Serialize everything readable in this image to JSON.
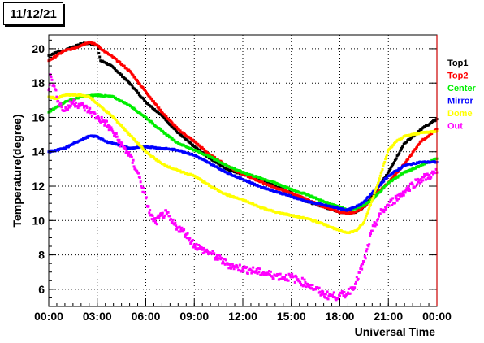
{
  "header": {
    "date": "11/12/21"
  },
  "chart_data": {
    "type": "scatter",
    "title": "",
    "xlabel": "Universal Time",
    "ylabel": "Temperature(degree)",
    "xlim": [
      0,
      24
    ],
    "ylim": [
      5,
      20.8
    ],
    "grid": true,
    "legend_position": "right",
    "x_ticks": [
      {
        "value": 0,
        "label": "00:00"
      },
      {
        "value": 3,
        "label": "03:00"
      },
      {
        "value": 6,
        "label": "06:00"
      },
      {
        "value": 9,
        "label": "09:00"
      },
      {
        "value": 12,
        "label": "12:00"
      },
      {
        "value": 15,
        "label": "15:00"
      },
      {
        "value": 18,
        "label": "18:00"
      },
      {
        "value": 21,
        "label": "21:00"
      },
      {
        "value": 24,
        "label": "00:00"
      }
    ],
    "y_ticks": [
      {
        "value": 6,
        "label": "6"
      },
      {
        "value": 8,
        "label": "8"
      },
      {
        "value": 10,
        "label": "10"
      },
      {
        "value": 12,
        "label": "12"
      },
      {
        "value": 14,
        "label": "14"
      },
      {
        "value": 16,
        "label": "16"
      },
      {
        "value": 18,
        "label": "18"
      },
      {
        "value": 20,
        "label": "20"
      }
    ],
    "series": [
      {
        "name": "Top1",
        "color": "#000000",
        "x": [
          0,
          0.5,
          1,
          1.5,
          2,
          2.5,
          3,
          3.2,
          3.5,
          4,
          5,
          6,
          7,
          8,
          9,
          10,
          11,
          12,
          13,
          14,
          15,
          16,
          17,
          18,
          18.5,
          19,
          19.5,
          20,
          21,
          22,
          23,
          24
        ],
        "y": [
          19.6,
          19.8,
          19.9,
          20.1,
          20.3,
          20.3,
          20.2,
          19.3,
          19.2,
          18.9,
          18.0,
          16.9,
          16.1,
          15.1,
          14.3,
          13.6,
          13.0,
          12.7,
          12.4,
          12.0,
          11.6,
          11.1,
          10.8,
          10.5,
          10.4,
          10.5,
          10.8,
          11.4,
          12.8,
          14.5,
          15.3,
          15.9
        ]
      },
      {
        "name": "Top2",
        "color": "#ff0000",
        "x": [
          0,
          0.5,
          1,
          1.5,
          2,
          2.5,
          3,
          3.5,
          4,
          5,
          6,
          7,
          8,
          9,
          10,
          11,
          12,
          13,
          14,
          15,
          16,
          17,
          18,
          18.5,
          19,
          19.5,
          20,
          21,
          22,
          23,
          24
        ],
        "y": [
          19.3,
          19.6,
          19.9,
          20.0,
          20.2,
          20.4,
          20.2,
          19.8,
          19.5,
          18.7,
          17.5,
          16.3,
          15.3,
          14.6,
          13.8,
          13.2,
          12.7,
          12.3,
          11.9,
          11.6,
          11.2,
          10.8,
          10.5,
          10.4,
          10.5,
          10.8,
          11.3,
          12.2,
          13.3,
          14.6,
          15.3
        ]
      },
      {
        "name": "Center",
        "color": "#00ee00",
        "x": [
          0,
          1,
          2,
          3,
          4,
          5,
          6,
          7,
          8,
          9,
          10,
          11,
          12,
          13,
          14,
          15,
          16,
          17,
          18,
          18.5,
          19,
          19.5,
          20,
          21,
          22,
          23,
          24
        ],
        "y": [
          16.3,
          16.9,
          17.2,
          17.3,
          17.2,
          16.7,
          16.0,
          15.2,
          14.5,
          14.1,
          13.7,
          13.2,
          12.8,
          12.5,
          12.2,
          11.8,
          11.5,
          11.1,
          10.8,
          10.6,
          10.7,
          10.9,
          11.2,
          12.2,
          12.8,
          13.2,
          13.6
        ]
      },
      {
        "name": "Mirror",
        "color": "#0000ff",
        "x": [
          0,
          1,
          2,
          2.5,
          3,
          3.5,
          4,
          5,
          6,
          7,
          8,
          9,
          10,
          11,
          12,
          13,
          14,
          15,
          16,
          17,
          18,
          18.5,
          19,
          19.5,
          20,
          21,
          22,
          23,
          24
        ],
        "y": [
          14.0,
          14.2,
          14.7,
          14.9,
          14.9,
          14.6,
          14.5,
          14.2,
          14.3,
          14.2,
          14.1,
          13.8,
          13.3,
          12.8,
          12.4,
          12.0,
          11.7,
          11.4,
          11.1,
          10.9,
          10.7,
          10.6,
          10.8,
          11.1,
          11.6,
          12.6,
          13.2,
          13.4,
          13.4
        ]
      },
      {
        "name": "Dome",
        "color": "#ffff00",
        "x": [
          0,
          0.5,
          1,
          2,
          2.5,
          3,
          3.5,
          4,
          5,
          6,
          7,
          8,
          9,
          10,
          11,
          12,
          13,
          14,
          15,
          16,
          17,
          18,
          18.5,
          19,
          19.5,
          20,
          20.5,
          21,
          21.5,
          22,
          23,
          24
        ],
        "y": [
          17.2,
          17.1,
          17.3,
          17.3,
          17.2,
          16.8,
          16.4,
          16.0,
          15.0,
          14.0,
          13.3,
          12.9,
          12.6,
          12.0,
          11.5,
          11.2,
          10.8,
          10.5,
          10.3,
          10.1,
          9.8,
          9.4,
          9.3,
          9.4,
          9.9,
          11.2,
          12.6,
          14.1,
          14.6,
          14.9,
          15.1,
          15.2
        ]
      },
      {
        "name": "Out",
        "color": "#ff00ff",
        "x": [
          0,
          0.1,
          0.3,
          0.5,
          0.8,
          1,
          1.5,
          2,
          2.5,
          3,
          3.5,
          4,
          4.5,
          5,
          5.5,
          6,
          6.3,
          6.6,
          7,
          7.3,
          7.6,
          8,
          8.5,
          9,
          9.5,
          10,
          10.5,
          11,
          11.5,
          12,
          12.5,
          13,
          13.5,
          14,
          14.5,
          15,
          15.5,
          16,
          16.5,
          17,
          17.5,
          18,
          18.5,
          19,
          19.5,
          20,
          20.5,
          21,
          21.5,
          22,
          22.5,
          23,
          23.5,
          24
        ],
        "y": [
          17.6,
          18.5,
          17.9,
          17.2,
          16.6,
          16.4,
          16.9,
          16.7,
          16.4,
          16.0,
          15.7,
          15.1,
          14.4,
          13.8,
          12.8,
          11.3,
          10.3,
          9.9,
          10.3,
          10.4,
          9.9,
          9.6,
          9.2,
          8.6,
          8.3,
          8.1,
          7.8,
          7.5,
          7.3,
          7.2,
          7.1,
          7.0,
          6.9,
          6.8,
          6.7,
          6.7,
          6.5,
          6.3,
          6.0,
          5.7,
          5.6,
          5.6,
          5.8,
          6.4,
          7.6,
          9.4,
          10.4,
          10.9,
          11.3,
          11.7,
          12.1,
          12.4,
          12.6,
          12.8
        ]
      }
    ]
  }
}
